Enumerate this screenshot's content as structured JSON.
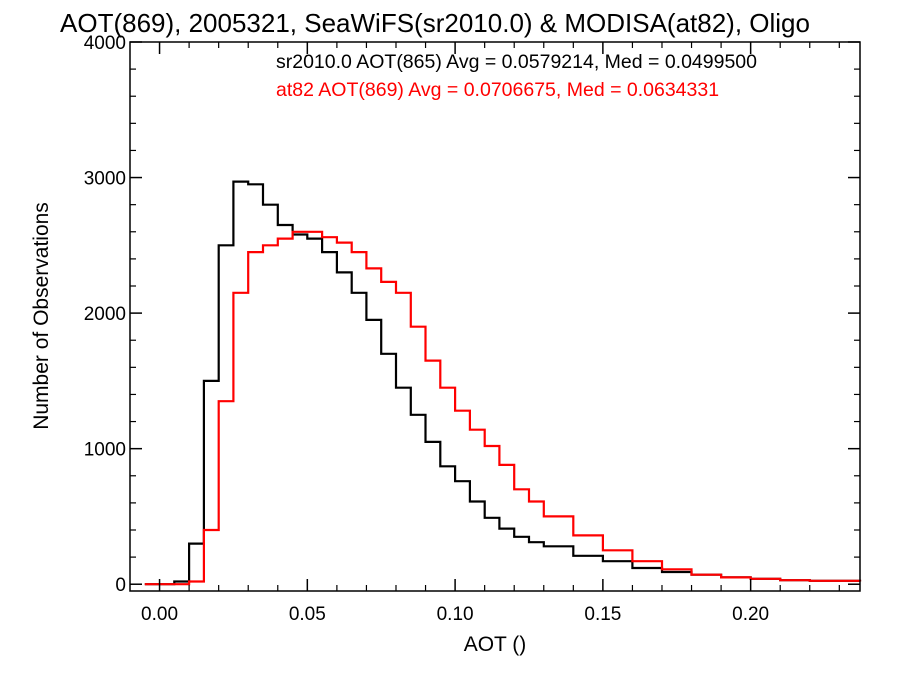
{
  "chart_data": {
    "type": "line",
    "title": "AOT(869), 2005321, SeaWiFS(sr2010.0) & MODISA(at82), Oligo",
    "xlabel": "AOT ()",
    "ylabel": "Number of Observations",
    "xlim": [
      -0.01,
      0.237
    ],
    "ylim": [
      -50,
      4000
    ],
    "xticks": [
      0.0,
      0.05,
      0.1,
      0.15,
      0.2
    ],
    "xtick_labels": [
      "0.00",
      "0.05",
      "0.10",
      "0.15",
      "0.20"
    ],
    "yticks": [
      0,
      1000,
      2000,
      3000,
      4000
    ],
    "ytick_labels": [
      "0",
      "1000",
      "2000",
      "3000",
      "4000"
    ],
    "grid": false,
    "step": true,
    "series": [
      {
        "name": "sr2010.0 AOT(865) Avg = 0.0579214, Med = 0.0499500",
        "color": "#000000",
        "x": [
          -0.005,
          0.0,
          0.005,
          0.01,
          0.015,
          0.02,
          0.025,
          0.03,
          0.035,
          0.04,
          0.045,
          0.05,
          0.055,
          0.06,
          0.065,
          0.07,
          0.075,
          0.08,
          0.085,
          0.09,
          0.095,
          0.1,
          0.105,
          0.11,
          0.115,
          0.12,
          0.125,
          0.13,
          0.14,
          0.15,
          0.16,
          0.17,
          0.18,
          0.19,
          0.2,
          0.21,
          0.22,
          0.237
        ],
        "y": [
          0,
          0,
          20,
          300,
          1500,
          2500,
          2970,
          2950,
          2800,
          2650,
          2580,
          2550,
          2450,
          2300,
          2150,
          1950,
          1700,
          1450,
          1250,
          1050,
          870,
          760,
          610,
          490,
          410,
          350,
          310,
          280,
          210,
          170,
          120,
          90,
          70,
          50,
          40,
          30,
          25,
          20
        ]
      },
      {
        "name": "at82 AOT(869) Avg = 0.0706675, Med = 0.0634331",
        "color": "#ff0000",
        "x": [
          -0.005,
          0.0,
          0.005,
          0.01,
          0.015,
          0.02,
          0.025,
          0.03,
          0.035,
          0.04,
          0.045,
          0.05,
          0.055,
          0.06,
          0.065,
          0.07,
          0.075,
          0.08,
          0.085,
          0.09,
          0.095,
          0.1,
          0.105,
          0.11,
          0.115,
          0.12,
          0.125,
          0.13,
          0.14,
          0.15,
          0.16,
          0.17,
          0.18,
          0.19,
          0.2,
          0.21,
          0.22,
          0.237
        ],
        "y": [
          0,
          0,
          0,
          20,
          400,
          1350,
          2150,
          2450,
          2500,
          2550,
          2600,
          2600,
          2560,
          2520,
          2450,
          2330,
          2230,
          2150,
          1900,
          1650,
          1450,
          1280,
          1140,
          1020,
          880,
          700,
          610,
          500,
          360,
          250,
          170,
          110,
          70,
          50,
          40,
          30,
          25,
          20
        ]
      }
    ]
  }
}
